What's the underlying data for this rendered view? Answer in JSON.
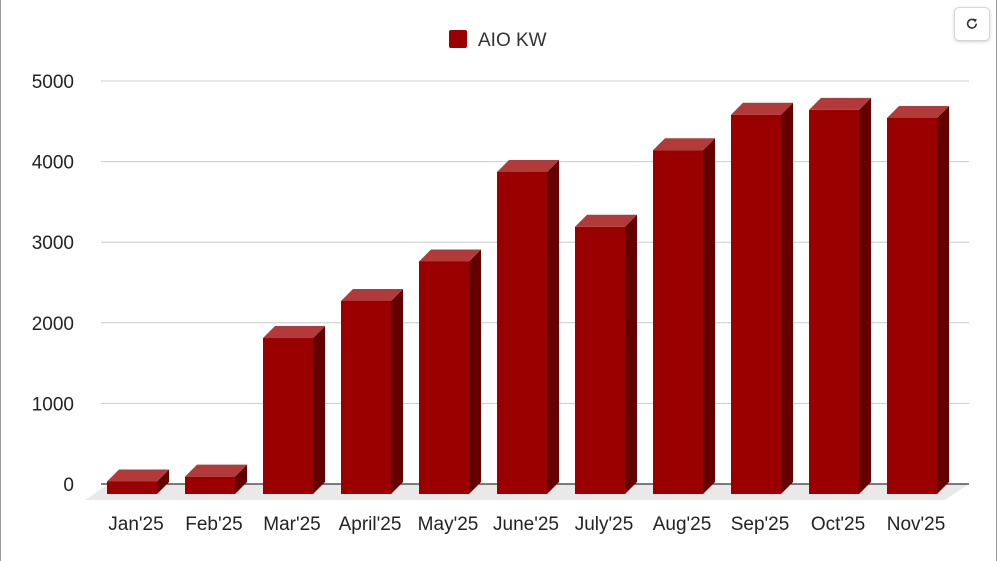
{
  "toolbar": {
    "refresh_icon": "refresh-icon"
  },
  "legend": {
    "color": "#9b0000"
  },
  "chart_data": {
    "type": "bar",
    "categories": [
      "Jan'25",
      "Feb'25",
      "Mar'25",
      "April'25",
      "May'25",
      "June'25",
      "July'25",
      "Aug'25",
      "Sep'25",
      "Oct'25",
      "Nov'25"
    ],
    "series": [
      {
        "name": "AIO KW",
        "values": [
          180,
          240,
          1960,
          2420,
          2910,
          4020,
          3340,
          4290,
          4730,
          4790,
          4690
        ]
      }
    ],
    "ylim": [
      0,
      5000
    ],
    "yticks": [
      0,
      1000,
      2000,
      3000,
      4000,
      5000
    ],
    "grid": true,
    "legend_position": "top-center",
    "style": "3d-column",
    "colors": {
      "bar_front": "#9b0000",
      "bar_top": "#b33a3a",
      "bar_side": "#650000",
      "grid": "#cccccc",
      "floor": "#e9e9e9"
    }
  }
}
